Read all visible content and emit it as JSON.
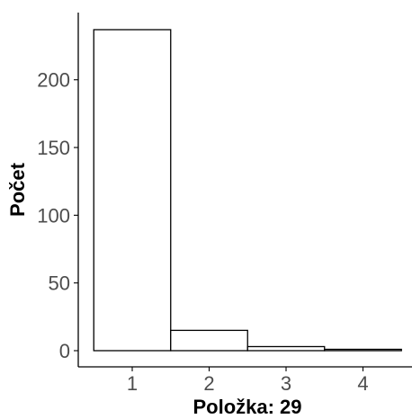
{
  "chart_data": {
    "type": "bar",
    "categories": [
      "1",
      "2",
      "3",
      "4"
    ],
    "values": [
      237,
      15,
      3,
      1
    ],
    "xlabel": "Položka: 29",
    "ylabel": "Počet",
    "ylim": [
      0,
      237
    ],
    "yticks": [
      0,
      50,
      100,
      150,
      200
    ],
    "grid": false,
    "bar_fill": "#ffffff",
    "bar_outline": "#000000",
    "tick_label_color": "#4d4d4d"
  }
}
